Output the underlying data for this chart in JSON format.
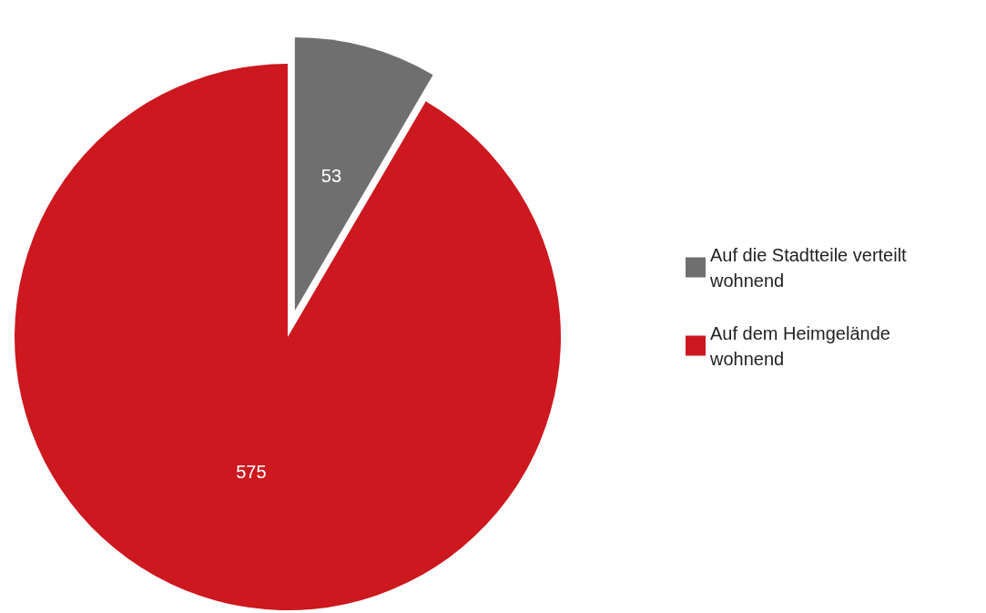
{
  "chart_data": {
    "type": "pie",
    "categories": [
      "Auf die Stadtteile verteilt wohnend",
      "Auf dem Heimgelände wohnend"
    ],
    "values": [
      53,
      575
    ],
    "colors": [
      "#6f6f6f",
      "#cc181e"
    ],
    "data_labels": true,
    "legend": "right"
  }
}
